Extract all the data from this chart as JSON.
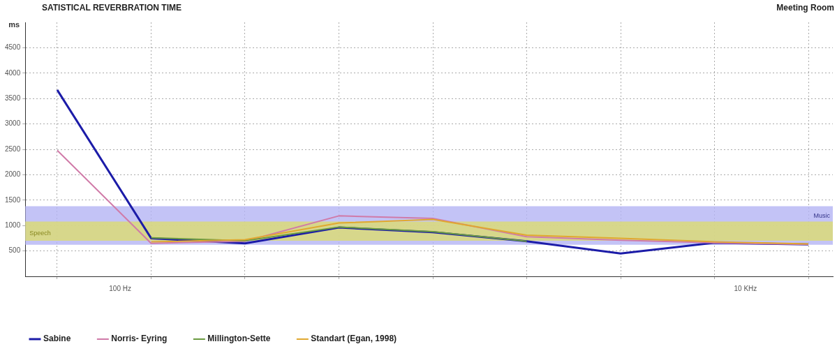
{
  "chart_data": {
    "type": "line",
    "title": "SATISTICAL REVERBRATION TIME",
    "subtitle": "Meeting Room",
    "ylabel": "ms",
    "categories": [
      null,
      null,
      null,
      null,
      null,
      null,
      null,
      null,
      null
    ],
    "annotations": [
      "100 Hz",
      "10 KHz"
    ],
    "series": [
      {
        "name": "Sabine",
        "color": "#1c1ca8",
        "values": [
          3670,
          750,
          650,
          960,
          870,
          690,
          450,
          660,
          630
        ]
      },
      {
        "name": "Norris- Eyring",
        "color": "#d07aa8",
        "values": [
          2480,
          650,
          690,
          1190,
          1140,
          780,
          710,
          660,
          630
        ]
      },
      {
        "name": "Millington-Sette",
        "color": "#6a9a40",
        "values": [
          null,
          760,
          700,
          970,
          880,
          690,
          null,
          null,
          null
        ]
      },
      {
        "name": "Standart (Egan, 1998)",
        "color": "#e0a830",
        "values": [
          null,
          680,
          720,
          1050,
          1120,
          810,
          750,
          680,
          640
        ]
      }
    ],
    "bands": [
      {
        "axis": "y",
        "from": 620,
        "to": 1380,
        "label": "Music",
        "color": "#b4b4f4"
      },
      {
        "axis": "y",
        "from": 700,
        "to": 1080,
        "label": "Speech",
        "color": "#dcdc70"
      }
    ],
    "ylim": [
      0,
      5000
    ],
    "yticks": [
      500,
      1000,
      1500,
      2000,
      2500,
      3000,
      3500,
      4000,
      4500
    ],
    "grid": true,
    "legend": "bottom",
    "marker": "none",
    "line_style": "solid"
  }
}
